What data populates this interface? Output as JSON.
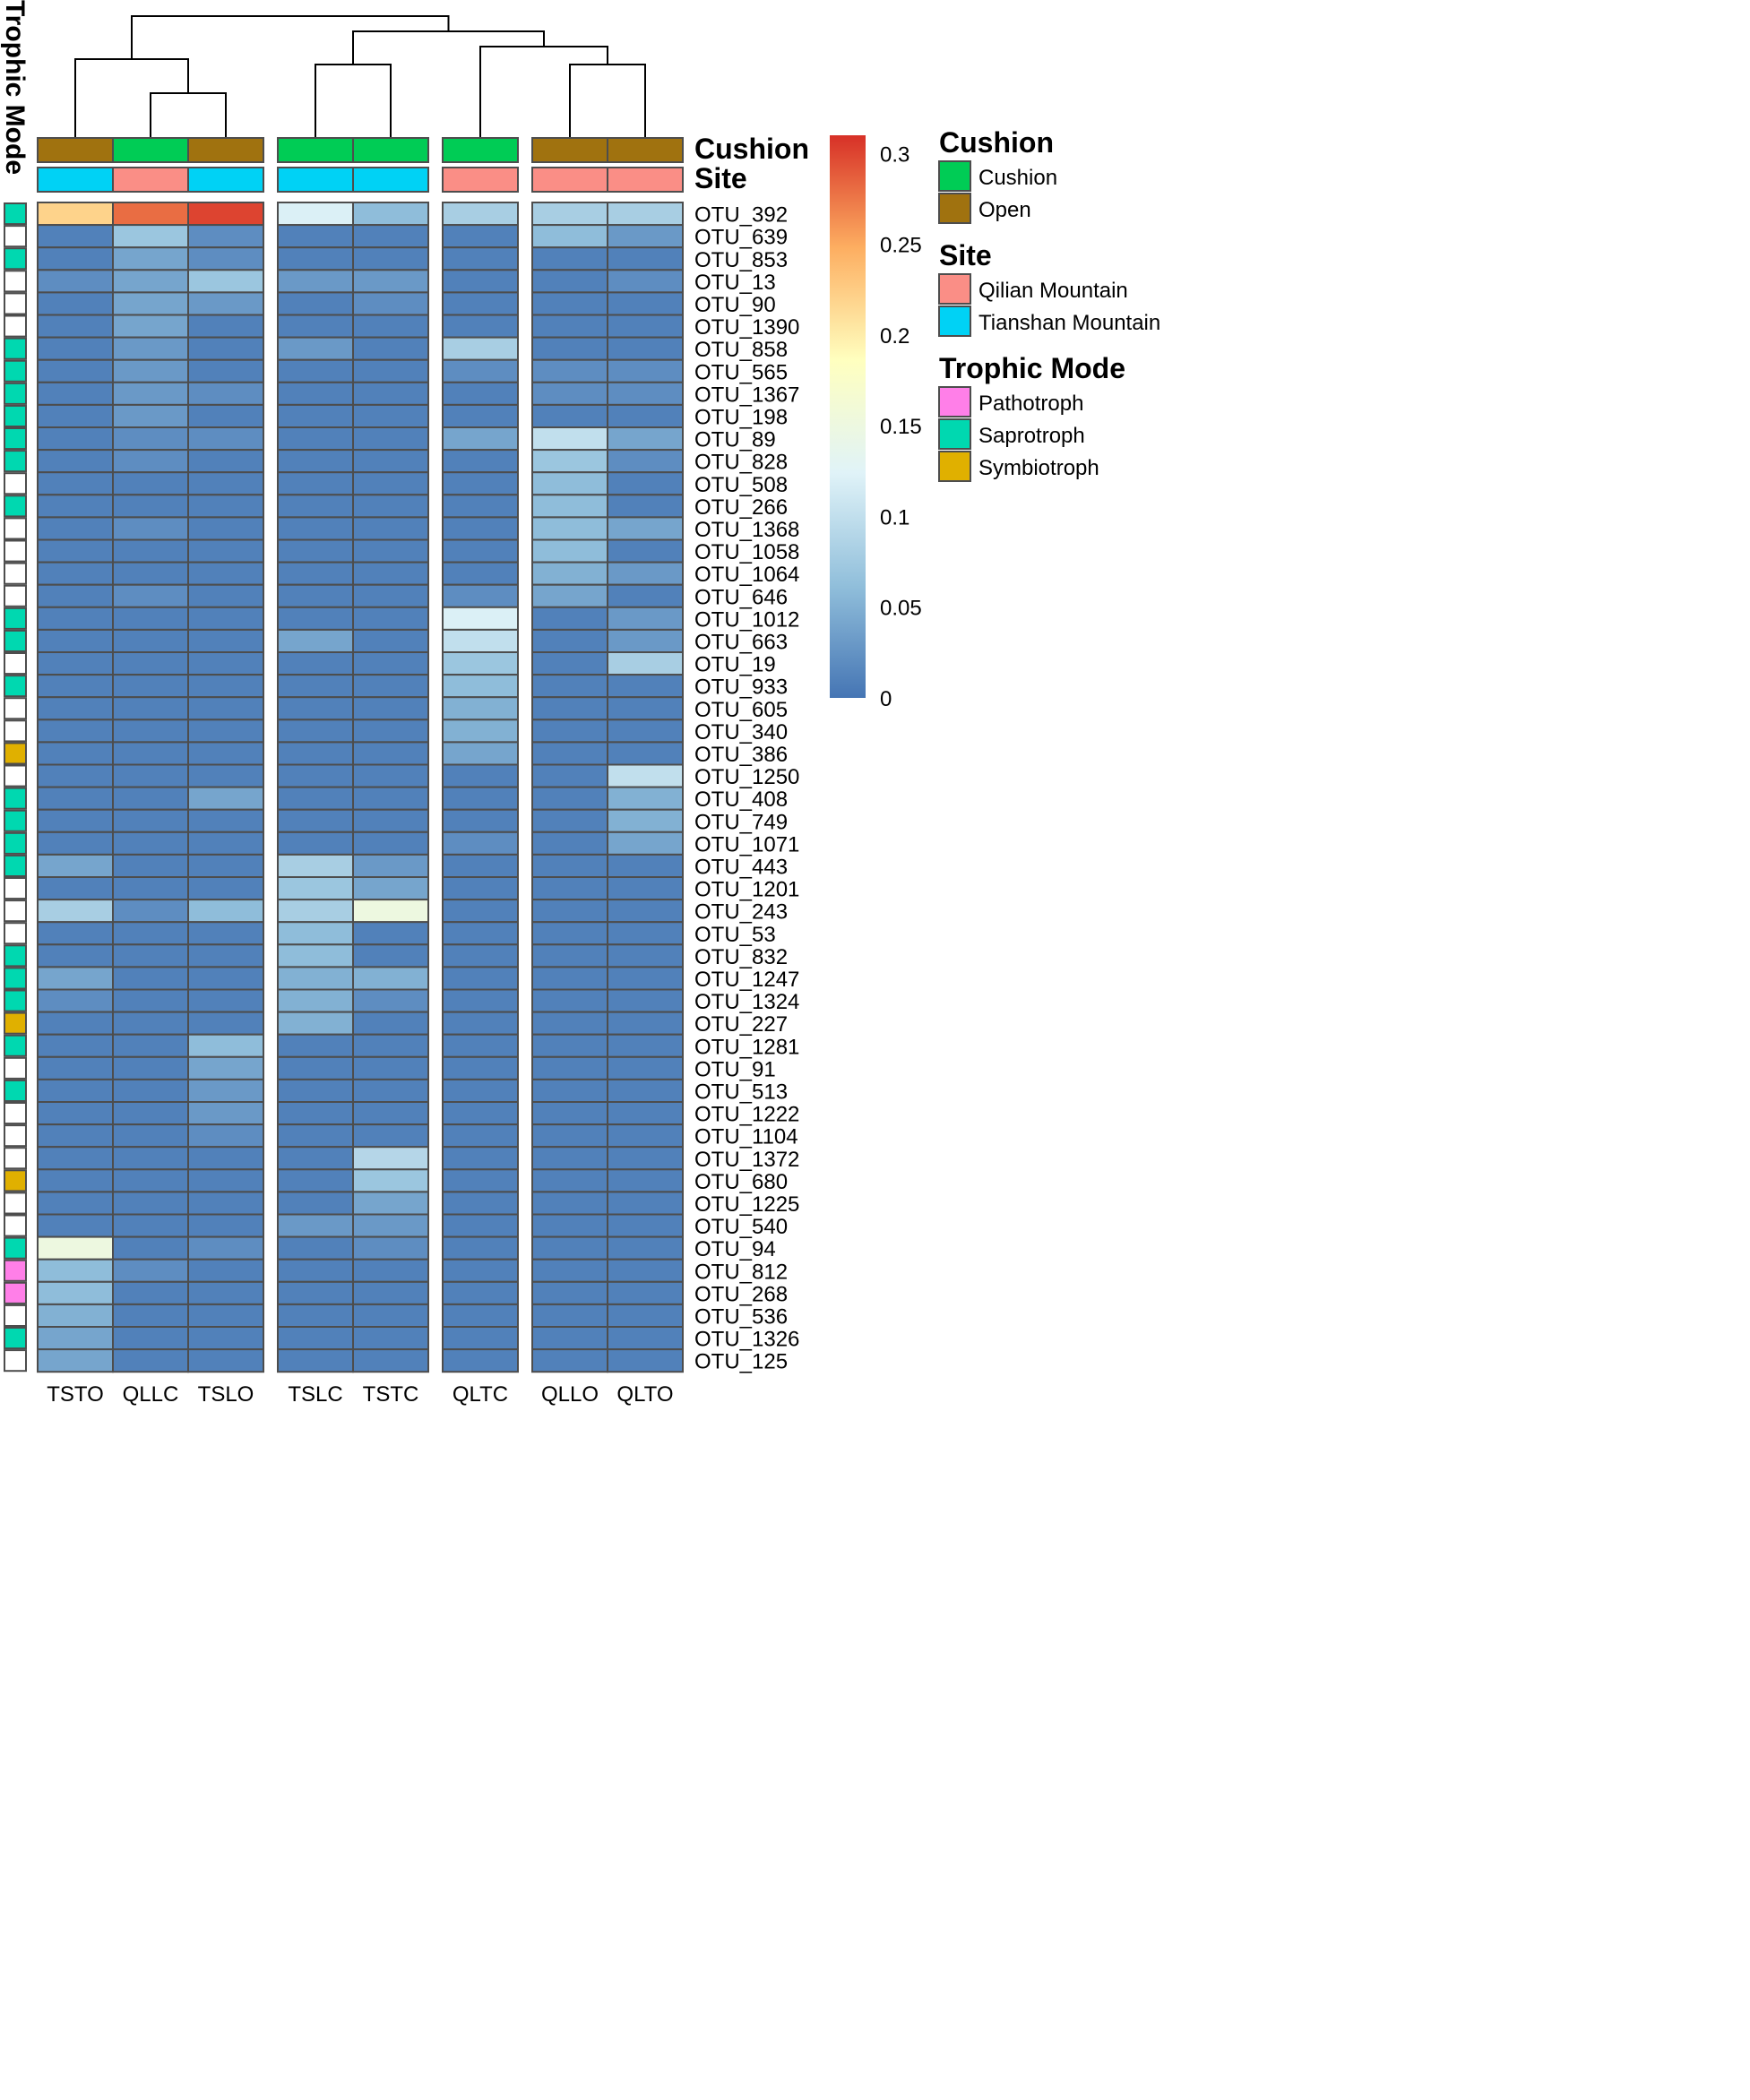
{
  "chart_data": {
    "type": "heatmap",
    "title": "",
    "columns": [
      "TSTO",
      "QLLC",
      "TSLO",
      "TSLC",
      "TSTC",
      "QLTC",
      "QLLO",
      "QLTO"
    ],
    "column_groups": [
      [
        0,
        1,
        2
      ],
      [
        3,
        4
      ],
      [
        5
      ],
      [
        6,
        7
      ]
    ],
    "annotation_rows": [
      {
        "name": "Cushion",
        "values": [
          "Open",
          "Cushion",
          "Open",
          "Cushion",
          "Cushion",
          "Cushion",
          "Open",
          "Open"
        ]
      },
      {
        "name": "Site",
        "values": [
          "Tianshan Mountain",
          "Qilian Mountain",
          "Tianshan Mountain",
          "Tianshan Mountain",
          "Tianshan Mountain",
          "Qilian Mountain",
          "Qilian Mountain",
          "Qilian Mountain"
        ]
      }
    ],
    "row_annotation_title": "Trophic Mode",
    "rows": [
      {
        "label": "OTU_392",
        "trophic": "Saprotroph",
        "values": [
          0.22,
          0.28,
          0.3,
          0.12,
          0.06,
          0.08,
          0.08,
          0.08
        ]
      },
      {
        "label": "OTU_639",
        "trophic": "",
        "values": [
          0.01,
          0.07,
          0.02,
          0.01,
          0.01,
          0.01,
          0.06,
          0.03
        ]
      },
      {
        "label": "OTU_853",
        "trophic": "Saprotroph",
        "values": [
          0.01,
          0.04,
          0.02,
          0.01,
          0.01,
          0.01,
          0.01,
          0.01
        ]
      },
      {
        "label": "OTU_13",
        "trophic": "",
        "values": [
          0.02,
          0.04,
          0.07,
          0.03,
          0.03,
          0.01,
          0.01,
          0.02
        ]
      },
      {
        "label": "OTU_90",
        "trophic": "",
        "values": [
          0.01,
          0.04,
          0.03,
          0.01,
          0.02,
          0.01,
          0.01,
          0.01
        ]
      },
      {
        "label": "OTU_1390",
        "trophic": "",
        "values": [
          0.01,
          0.04,
          0.01,
          0.01,
          0.01,
          0.01,
          0.01,
          0.01
        ]
      },
      {
        "label": "OTU_858",
        "trophic": "Saprotroph",
        "values": [
          0.01,
          0.03,
          0.01,
          0.03,
          0.01,
          0.08,
          0.01,
          0.01
        ]
      },
      {
        "label": "OTU_565",
        "trophic": "Saprotroph",
        "values": [
          0.01,
          0.03,
          0.01,
          0.01,
          0.01,
          0.02,
          0.02,
          0.02
        ]
      },
      {
        "label": "OTU_1367",
        "trophic": "Saprotroph",
        "values": [
          0.01,
          0.03,
          0.02,
          0.01,
          0.01,
          0.01,
          0.02,
          0.02
        ]
      },
      {
        "label": "OTU_198",
        "trophic": "Saprotroph",
        "values": [
          0.01,
          0.03,
          0.01,
          0.01,
          0.01,
          0.01,
          0.01,
          0.01
        ]
      },
      {
        "label": "OTU_89",
        "trophic": "Saprotroph",
        "values": [
          0.01,
          0.02,
          0.02,
          0.01,
          0.01,
          0.04,
          0.1,
          0.04
        ]
      },
      {
        "label": "OTU_828",
        "trophic": "Saprotroph",
        "values": [
          0.01,
          0.02,
          0.01,
          0.01,
          0.01,
          0.01,
          0.07,
          0.02
        ]
      },
      {
        "label": "OTU_508",
        "trophic": "",
        "values": [
          0.01,
          0.01,
          0.01,
          0.01,
          0.01,
          0.01,
          0.06,
          0.01
        ]
      },
      {
        "label": "OTU_266",
        "trophic": "Saprotroph",
        "values": [
          0.01,
          0.01,
          0.01,
          0.01,
          0.01,
          0.01,
          0.06,
          0.01
        ]
      },
      {
        "label": "OTU_1368",
        "trophic": "",
        "values": [
          0.01,
          0.02,
          0.01,
          0.01,
          0.01,
          0.01,
          0.06,
          0.04
        ]
      },
      {
        "label": "OTU_1058",
        "trophic": "",
        "values": [
          0.01,
          0.01,
          0.01,
          0.01,
          0.01,
          0.01,
          0.06,
          0.01
        ]
      },
      {
        "label": "OTU_1064",
        "trophic": "",
        "values": [
          0.01,
          0.01,
          0.01,
          0.01,
          0.01,
          0.01,
          0.05,
          0.03
        ]
      },
      {
        "label": "OTU_646",
        "trophic": "",
        "values": [
          0.01,
          0.02,
          0.01,
          0.01,
          0.01,
          0.02,
          0.04,
          0.01
        ]
      },
      {
        "label": "OTU_1012",
        "trophic": "Saprotroph",
        "values": [
          0.01,
          0.01,
          0.01,
          0.01,
          0.01,
          0.12,
          0.01,
          0.03
        ]
      },
      {
        "label": "OTU_663",
        "trophic": "Saprotroph",
        "values": [
          0.01,
          0.01,
          0.01,
          0.04,
          0.01,
          0.1,
          0.01,
          0.03
        ]
      },
      {
        "label": "OTU_19",
        "trophic": "",
        "values": [
          0.01,
          0.01,
          0.01,
          0.01,
          0.01,
          0.07,
          0.01,
          0.08
        ]
      },
      {
        "label": "OTU_933",
        "trophic": "Saprotroph",
        "values": [
          0.01,
          0.01,
          0.01,
          0.01,
          0.01,
          0.06,
          0.01,
          0.01
        ]
      },
      {
        "label": "OTU_605",
        "trophic": "",
        "values": [
          0.01,
          0.01,
          0.01,
          0.01,
          0.01,
          0.05,
          0.01,
          0.01
        ]
      },
      {
        "label": "OTU_340",
        "trophic": "",
        "values": [
          0.01,
          0.01,
          0.01,
          0.01,
          0.01,
          0.05,
          0.01,
          0.01
        ]
      },
      {
        "label": "OTU_386",
        "trophic": "Symbiotroph",
        "values": [
          0.01,
          0.01,
          0.01,
          0.01,
          0.01,
          0.04,
          0.01,
          0.01
        ]
      },
      {
        "label": "OTU_1250",
        "trophic": "",
        "values": [
          0.01,
          0.01,
          0.01,
          0.01,
          0.01,
          0.01,
          0.01,
          0.1
        ]
      },
      {
        "label": "OTU_408",
        "trophic": "Saprotroph",
        "values": [
          0.01,
          0.01,
          0.04,
          0.01,
          0.01,
          0.01,
          0.01,
          0.05
        ]
      },
      {
        "label": "OTU_749",
        "trophic": "Saprotroph",
        "values": [
          0.01,
          0.01,
          0.01,
          0.01,
          0.01,
          0.01,
          0.01,
          0.05
        ]
      },
      {
        "label": "OTU_1071",
        "trophic": "Saprotroph",
        "values": [
          0.01,
          0.01,
          0.01,
          0.01,
          0.01,
          0.02,
          0.01,
          0.04
        ]
      },
      {
        "label": "OTU_443",
        "trophic": "Saprotroph",
        "values": [
          0.04,
          0.01,
          0.01,
          0.08,
          0.03,
          0.01,
          0.01,
          0.01
        ]
      },
      {
        "label": "OTU_1201",
        "trophic": "",
        "values": [
          0.01,
          0.01,
          0.01,
          0.07,
          0.04,
          0.01,
          0.01,
          0.01
        ]
      },
      {
        "label": "OTU_243",
        "trophic": "",
        "values": [
          0.08,
          0.02,
          0.06,
          0.08,
          0.15,
          0.01,
          0.01,
          0.01
        ]
      },
      {
        "label": "OTU_53",
        "trophic": "",
        "values": [
          0.01,
          0.01,
          0.01,
          0.06,
          0.01,
          0.01,
          0.01,
          0.01
        ]
      },
      {
        "label": "OTU_832",
        "trophic": "Saprotroph",
        "values": [
          0.01,
          0.01,
          0.01,
          0.06,
          0.01,
          0.01,
          0.01,
          0.01
        ]
      },
      {
        "label": "OTU_1247",
        "trophic": "Saprotroph",
        "values": [
          0.04,
          0.01,
          0.01,
          0.05,
          0.05,
          0.01,
          0.01,
          0.01
        ]
      },
      {
        "label": "OTU_1324",
        "trophic": "Saprotroph",
        "values": [
          0.02,
          0.01,
          0.01,
          0.05,
          0.02,
          0.01,
          0.01,
          0.01
        ]
      },
      {
        "label": "OTU_227",
        "trophic": "Symbiotroph",
        "values": [
          0.01,
          0.01,
          0.01,
          0.05,
          0.01,
          0.01,
          0.01,
          0.01
        ]
      },
      {
        "label": "OTU_1281",
        "trophic": "Saprotroph",
        "values": [
          0.01,
          0.01,
          0.06,
          0.01,
          0.01,
          0.01,
          0.01,
          0.01
        ]
      },
      {
        "label": "OTU_91",
        "trophic": "",
        "values": [
          0.01,
          0.01,
          0.04,
          0.01,
          0.01,
          0.01,
          0.01,
          0.01
        ]
      },
      {
        "label": "OTU_513",
        "trophic": "Saprotroph",
        "values": [
          0.01,
          0.01,
          0.03,
          0.01,
          0.01,
          0.01,
          0.01,
          0.01
        ]
      },
      {
        "label": "OTU_1222",
        "trophic": "",
        "values": [
          0.01,
          0.01,
          0.03,
          0.01,
          0.01,
          0.01,
          0.01,
          0.01
        ]
      },
      {
        "label": "OTU_1104",
        "trophic": "",
        "values": [
          0.01,
          0.01,
          0.02,
          0.01,
          0.01,
          0.01,
          0.01,
          0.01
        ]
      },
      {
        "label": "OTU_1372",
        "trophic": "",
        "values": [
          0.01,
          0.01,
          0.01,
          0.01,
          0.09,
          0.01,
          0.01,
          0.01
        ]
      },
      {
        "label": "OTU_680",
        "trophic": "Symbiotroph",
        "values": [
          0.01,
          0.01,
          0.01,
          0.01,
          0.07,
          0.01,
          0.01,
          0.01
        ]
      },
      {
        "label": "OTU_1225",
        "trophic": "",
        "values": [
          0.01,
          0.01,
          0.01,
          0.01,
          0.04,
          0.01,
          0.01,
          0.01
        ]
      },
      {
        "label": "OTU_540",
        "trophic": "",
        "values": [
          0.01,
          0.01,
          0.01,
          0.03,
          0.03,
          0.01,
          0.01,
          0.01
        ]
      },
      {
        "label": "OTU_94",
        "trophic": "Saprotroph",
        "values": [
          0.15,
          0.01,
          0.02,
          0.01,
          0.02,
          0.01,
          0.01,
          0.01
        ]
      },
      {
        "label": "OTU_812",
        "trophic": "Pathotroph",
        "values": [
          0.06,
          0.02,
          0.01,
          0.01,
          0.01,
          0.01,
          0.01,
          0.01
        ]
      },
      {
        "label": "OTU_268",
        "trophic": "Pathotroph",
        "values": [
          0.06,
          0.01,
          0.01,
          0.01,
          0.01,
          0.01,
          0.01,
          0.01
        ]
      },
      {
        "label": "OTU_536",
        "trophic": "",
        "values": [
          0.05,
          0.01,
          0.01,
          0.01,
          0.01,
          0.01,
          0.01,
          0.01
        ]
      },
      {
        "label": "OTU_1326",
        "trophic": "Saprotroph",
        "values": [
          0.04,
          0.01,
          0.01,
          0.01,
          0.01,
          0.01,
          0.01,
          0.01
        ]
      },
      {
        "label": "OTU_125",
        "trophic": "",
        "values": [
          0.04,
          0.01,
          0.01,
          0.01,
          0.01,
          0.01,
          0.01,
          0.01
        ]
      }
    ],
    "color_scale": {
      "min": 0,
      "max": 0.31,
      "ticks": [
        0,
        0.05,
        0.1,
        0.15,
        0.2,
        0.25,
        0.3
      ],
      "tick_labels": [
        "0",
        "0.05",
        "0.1",
        "0.15",
        "0.2",
        "0.25",
        "0.3"
      ],
      "stops": [
        "#4575b4",
        "#91bfdb",
        "#e0f3f8",
        "#ffffbf",
        "#fdae61",
        "#d73027"
      ]
    },
    "legends": [
      {
        "title": "Cushion",
        "entries": [
          {
            "label": "Cushion",
            "color": "#00cc55"
          },
          {
            "label": "Open",
            "color": "#a0720f"
          }
        ]
      },
      {
        "title": "Site",
        "entries": [
          {
            "label": "Qilian Mountain",
            "color": "#fa8e86"
          },
          {
            "label": "Tianshan Mountain",
            "color": "#00d2f5"
          }
        ]
      },
      {
        "title": "Trophic Mode",
        "entries": [
          {
            "label": "Pathotroph",
            "color": "#ff7fe8"
          },
          {
            "label": "Saprotroph",
            "color": "#00d8b0"
          },
          {
            "label": "Symbiotroph",
            "color": "#e0b000"
          }
        ]
      }
    ]
  }
}
